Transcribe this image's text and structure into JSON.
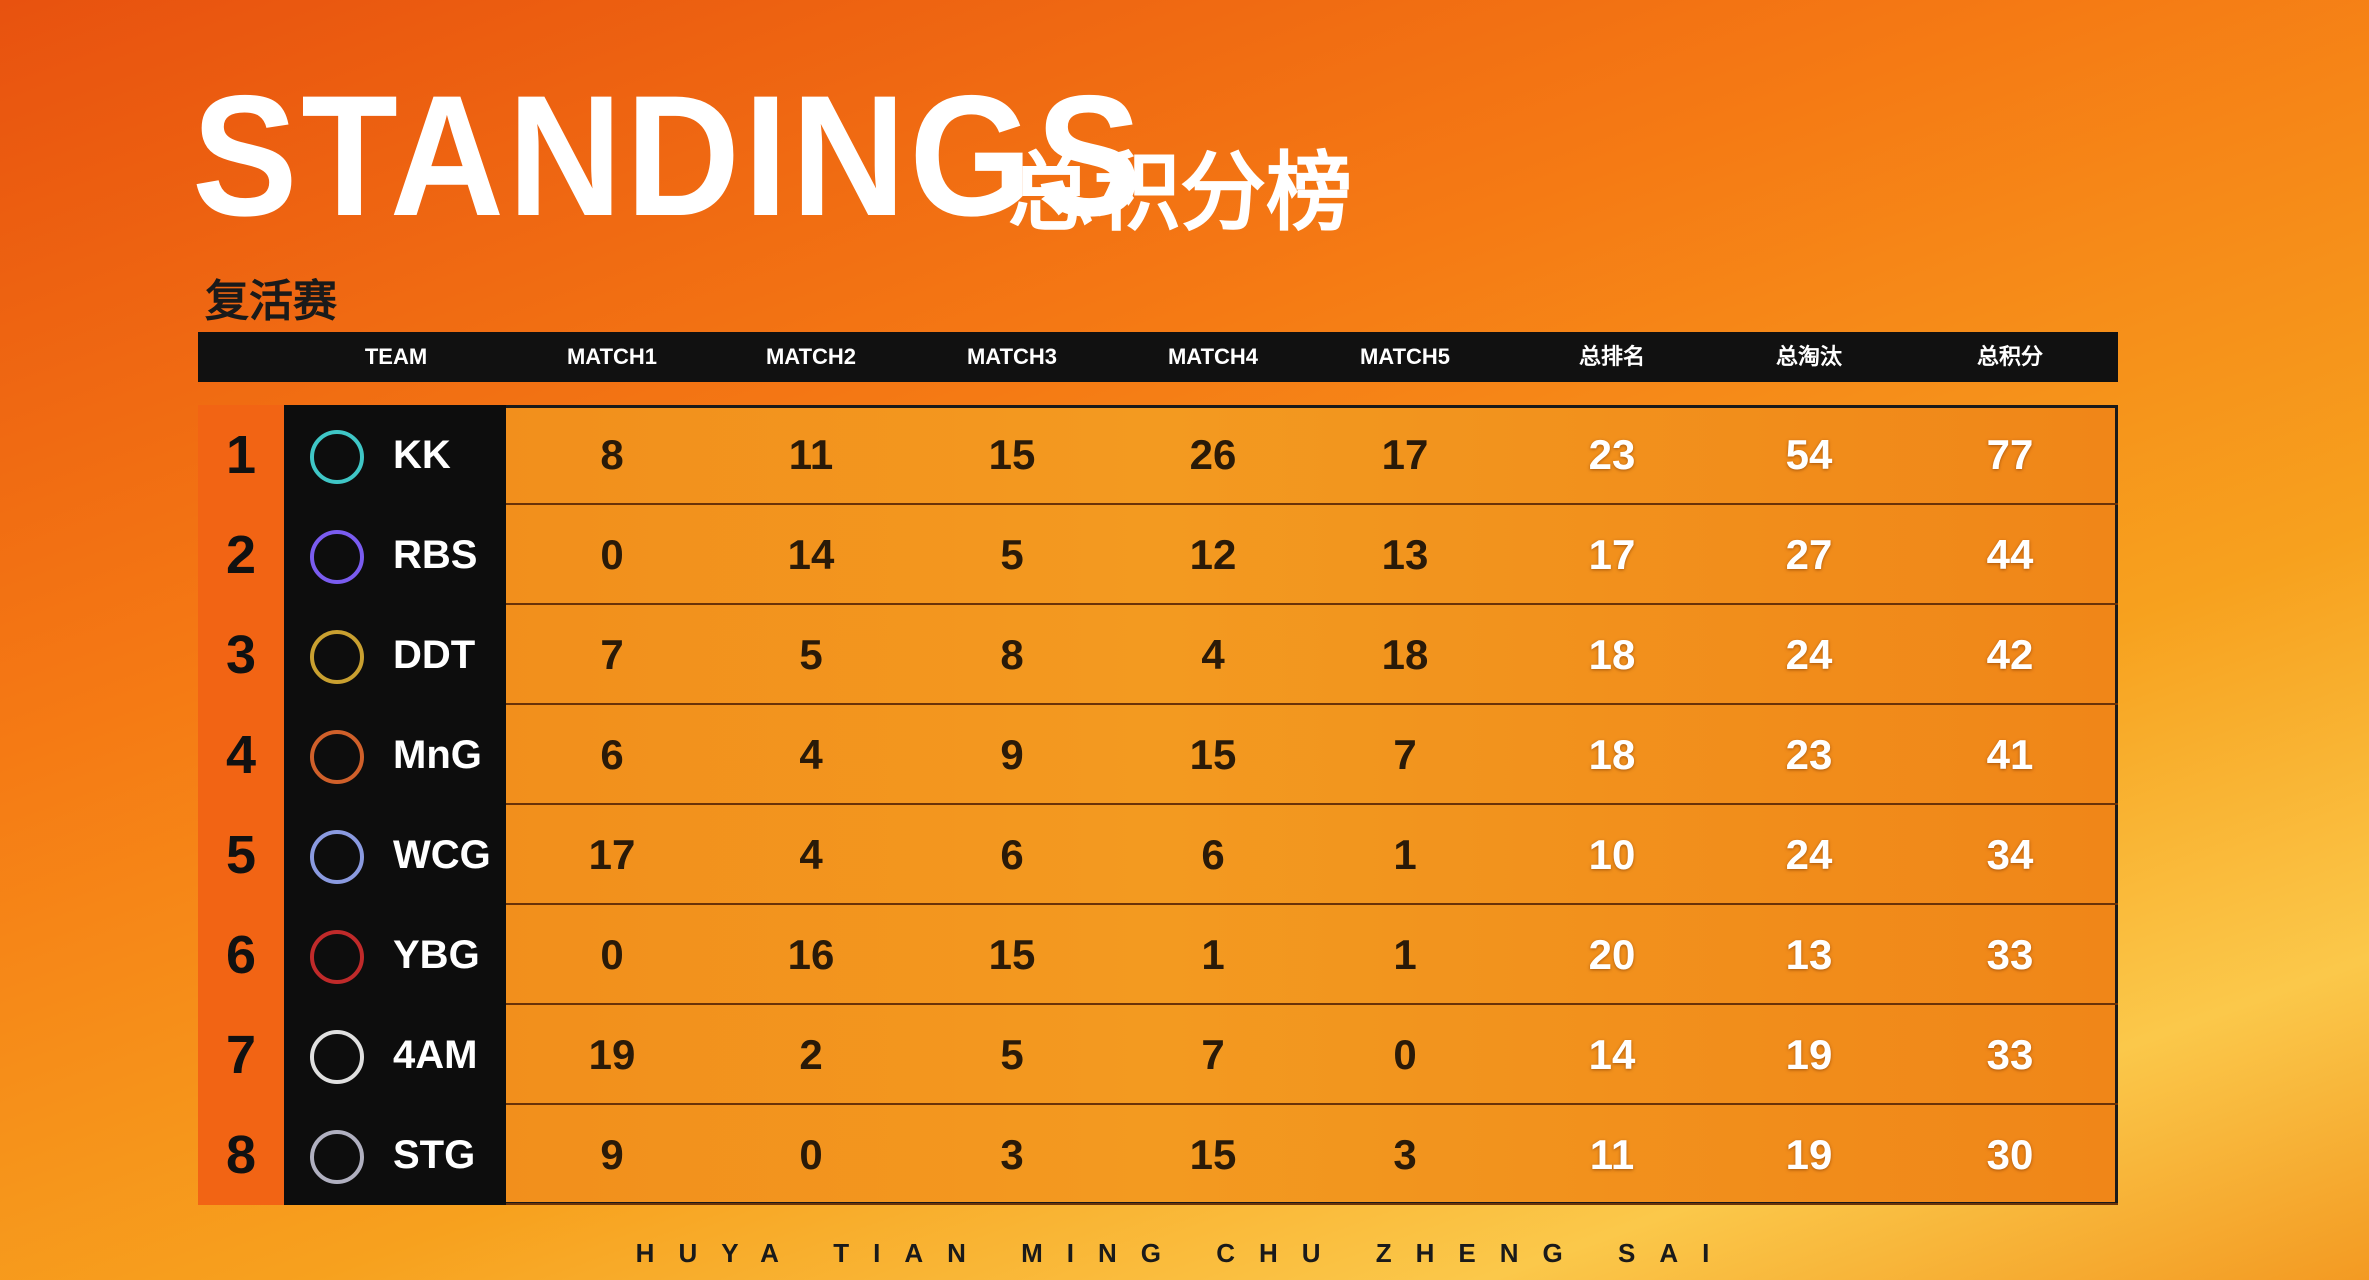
{
  "header": {
    "title": "STANDINGS",
    "subtitle": "总积分榜",
    "stage": "复活赛"
  },
  "table": {
    "columns": [
      "TEAM",
      "MATCH1",
      "MATCH2",
      "MATCH3",
      "MATCH4",
      "MATCH5",
      "总排名",
      "总淘汰",
      "总积分"
    ],
    "rows": [
      [
        1,
        "KK",
        8,
        11,
        15,
        26,
        17,
        23,
        54,
        77
      ],
      [
        2,
        "RBS",
        0,
        14,
        5,
        12,
        13,
        17,
        27,
        44
      ],
      [
        3,
        "DDT",
        7,
        5,
        8,
        4,
        18,
        18,
        24,
        42
      ],
      [
        4,
        "MnG",
        6,
        4,
        9,
        15,
        7,
        18,
        23,
        41
      ],
      [
        5,
        "WCG",
        17,
        4,
        6,
        6,
        1,
        10,
        24,
        34
      ],
      [
        6,
        "YBG",
        0,
        16,
        15,
        1,
        1,
        20,
        13,
        33
      ],
      [
        7,
        "4AM",
        19,
        2,
        5,
        7,
        0,
        14,
        19,
        33
      ],
      [
        8,
        "STG",
        9,
        0,
        3,
        15,
        3,
        11,
        19,
        30
      ]
    ]
  },
  "footer": "HUYA TIAN MING CHU ZHENG SAI"
}
